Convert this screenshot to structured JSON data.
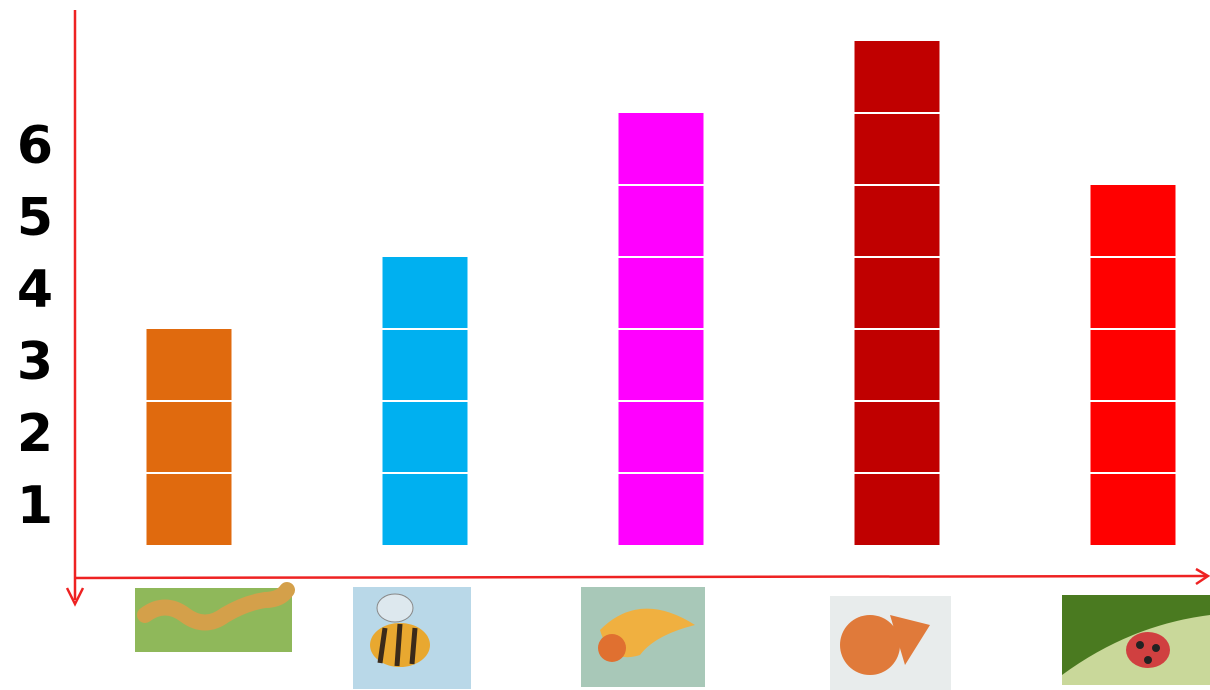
{
  "chart_data": {
    "type": "bar",
    "categories": [
      null,
      null,
      null,
      null,
      null
    ],
    "values": [
      3,
      4,
      6,
      7,
      5
    ],
    "colors": [
      "#e06a0e",
      "#00b0f0",
      "#ff00ff",
      "#c00000",
      "#ff0000"
    ],
    "ylim": [
      0,
      7
    ],
    "yticks": [
      1,
      2,
      3,
      4,
      5,
      6
    ]
  }
}
